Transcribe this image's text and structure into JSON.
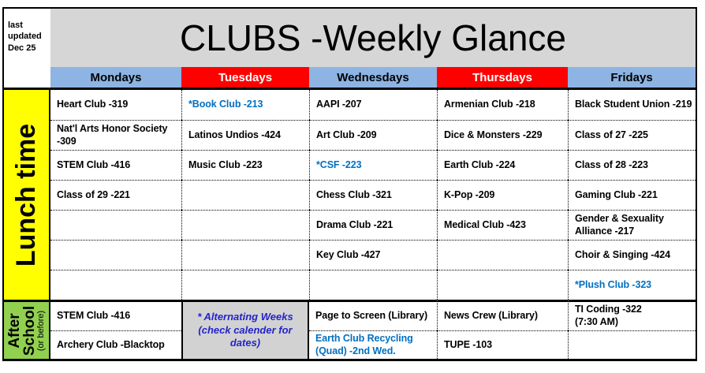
{
  "colors": {
    "header_blue": "#8DB4E2",
    "header_red": "#FF0000",
    "lunch_yellow": "#FFFF00",
    "after_green": "#92D050",
    "title_gray": "#D6D6D6",
    "note_gray": "#D2D2D2",
    "club_highlight_blue": "#0070C0",
    "note_text_blue": "#2323CC"
  },
  "header": {
    "last_updated": "last updated Dec 25",
    "title": "CLUBS -Weekly Glance"
  },
  "days": [
    "Mondays",
    "Tuesdays",
    "Wednesdays",
    "Thursdays",
    "Fridays"
  ],
  "lunch": {
    "label": "Lunch time",
    "rows": [
      [
        "Heart Club -319",
        "*Book Club -213",
        "AAPI -207",
        "Armenian Club -218",
        "Black Student Union -219"
      ],
      [
        "Nat'l Arts Honor Society -309",
        "Latinos Undios -424",
        "Art Club -209",
        "Dice & Monsters -229",
        "Class of 27 -225"
      ],
      [
        "STEM Club -416",
        "Music Club -223",
        "*CSF -223",
        "Earth Club -224",
        "Class of 28 -223"
      ],
      [
        "Class of 29 -221",
        "",
        "Chess Club -321",
        "K-Pop -209",
        "Gaming Club -221"
      ],
      [
        "",
        "",
        "Drama Club -221",
        "Medical Club -423",
        "Gender & Sexuality Alliance -217"
      ],
      [
        "",
        "",
        "Key Club -427",
        "",
        "Choir & Singing -424"
      ],
      [
        "",
        "",
        "",
        "",
        "*Plush Club -323"
      ]
    ]
  },
  "after": {
    "label": "After School",
    "sublabel": "(or before)",
    "note": "* Alternating Weeks (check calender for dates)",
    "rows": [
      [
        "STEM Club -416",
        "Page to Screen (Library)",
        "News Crew (Library)",
        "TI Coding -322\n(7:30 AM)"
      ],
      [
        "Archery Club -Blacktop",
        "Earth Club Recycling (Quad) -2nd Wed.",
        "TUPE -103",
        ""
      ]
    ]
  }
}
